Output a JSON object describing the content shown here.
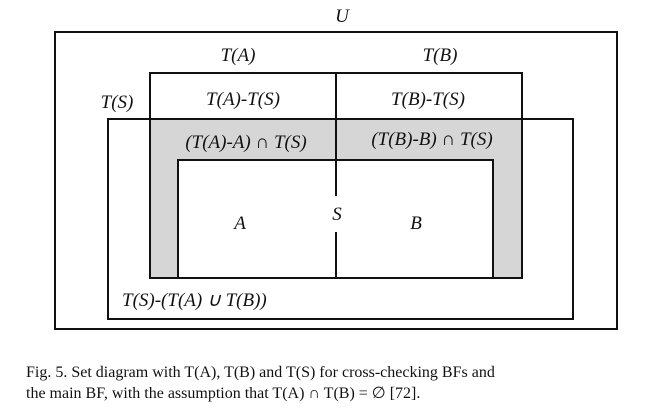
{
  "diagram": {
    "universe_label": "U",
    "ta_label": "T(A)",
    "tb_label": "T(B)",
    "ts_label": "T(S)",
    "ta_minus_ts": "T(A)-T(S)",
    "tb_minus_ts": "T(B)-T(S)",
    "ta_minus_a_cap_ts": "(T(A)-A) ∩ T(S)",
    "tb_minus_b_cap_ts": "(T(B)-B) ∩ T(S)",
    "a_label": "A",
    "b_label": "B",
    "s_label": "S",
    "ts_rest": "T(S)-(T(A) ∪ T(B))",
    "shade_color": "#d6d6d6",
    "line_color": "#111111"
  },
  "caption": {
    "line1": "Fig. 5.   Set diagram with T(A), T(B) and T(S) for cross-checking BFs and",
    "line2": "the main BF, with the assumption that T(A) ∩ T(B) = ∅ [72]."
  }
}
